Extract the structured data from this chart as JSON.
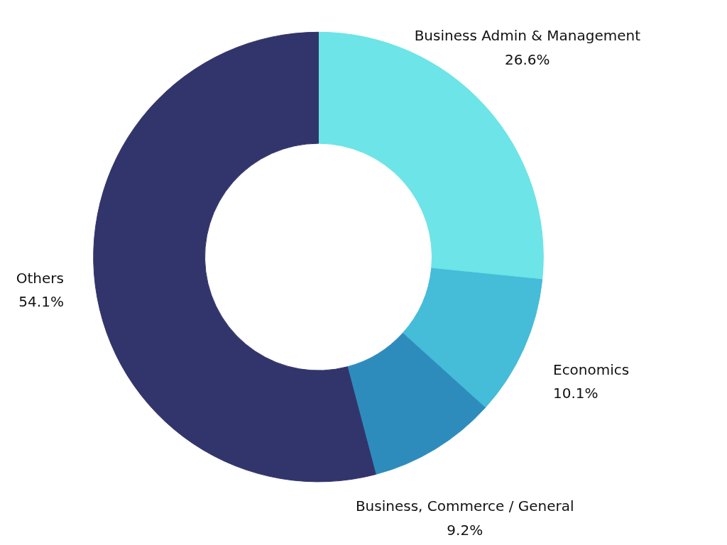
{
  "chart_data": {
    "type": "donut",
    "categories": [
      "Business Admin & Management",
      "Economics",
      "Business, Commerce / General",
      "Others"
    ],
    "values": [
      26.6,
      10.1,
      9.2,
      54.1
    ],
    "colors": [
      "#6ce4e8",
      "#45bcd8",
      "#2e8cbd",
      "#32356b"
    ],
    "value_labels": [
      "26.6%",
      "10.1%",
      "9.2%",
      "54.1%"
    ],
    "legend": false
  }
}
